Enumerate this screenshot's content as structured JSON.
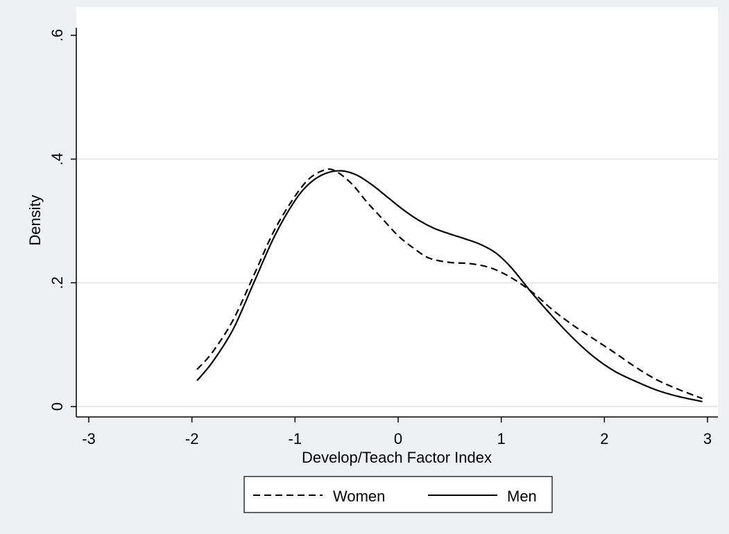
{
  "chart_data": {
    "type": "line",
    "xlabel": "Develop/Teach Factor Index",
    "ylabel": "Density",
    "xlim": [
      -3,
      3
    ],
    "ylim": [
      0,
      0.6
    ],
    "x_ticks": [
      -3,
      -2,
      -1,
      0,
      1,
      2,
      3
    ],
    "x_tick_labels": [
      "-3",
      "-2",
      "-1",
      "0",
      "1",
      "2",
      "3"
    ],
    "y_ticks": [
      0,
      0.2,
      0.4,
      0.6
    ],
    "y_tick_labels": [
      "0",
      ".2",
      ".4",
      ".6"
    ],
    "grid": "horizontal",
    "legend": {
      "position": "bottom"
    },
    "series": [
      {
        "name": "Women",
        "style": "dashed",
        "color": "#000000",
        "x": [
          -1.95,
          -1.8,
          -1.6,
          -1.4,
          -1.2,
          -1.0,
          -0.85,
          -0.7,
          -0.6,
          -0.45,
          -0.3,
          -0.15,
          0.0,
          0.15,
          0.3,
          0.5,
          0.7,
          0.9,
          1.1,
          1.3,
          1.5,
          1.7,
          1.9,
          2.1,
          2.3,
          2.5,
          2.7,
          2.95
        ],
        "y": [
          0.06,
          0.088,
          0.14,
          0.212,
          0.285,
          0.34,
          0.37,
          0.383,
          0.38,
          0.36,
          0.33,
          0.303,
          0.276,
          0.256,
          0.24,
          0.233,
          0.231,
          0.224,
          0.208,
          0.185,
          0.156,
          0.131,
          0.109,
          0.087,
          0.064,
          0.044,
          0.029,
          0.013
        ]
      },
      {
        "name": "Men",
        "style": "solid",
        "color": "#000000",
        "x": [
          -1.95,
          -1.8,
          -1.6,
          -1.4,
          -1.2,
          -1.0,
          -0.85,
          -0.7,
          -0.55,
          -0.4,
          -0.25,
          -0.1,
          0.05,
          0.2,
          0.35,
          0.5,
          0.65,
          0.8,
          0.95,
          1.1,
          1.3,
          1.5,
          1.7,
          1.9,
          2.1,
          2.3,
          2.5,
          2.7,
          2.95
        ],
        "y": [
          0.042,
          0.072,
          0.125,
          0.2,
          0.275,
          0.333,
          0.362,
          0.377,
          0.381,
          0.374,
          0.358,
          0.338,
          0.318,
          0.301,
          0.288,
          0.279,
          0.271,
          0.262,
          0.248,
          0.224,
          0.183,
          0.145,
          0.11,
          0.08,
          0.057,
          0.041,
          0.027,
          0.017,
          0.008
        ]
      }
    ]
  }
}
